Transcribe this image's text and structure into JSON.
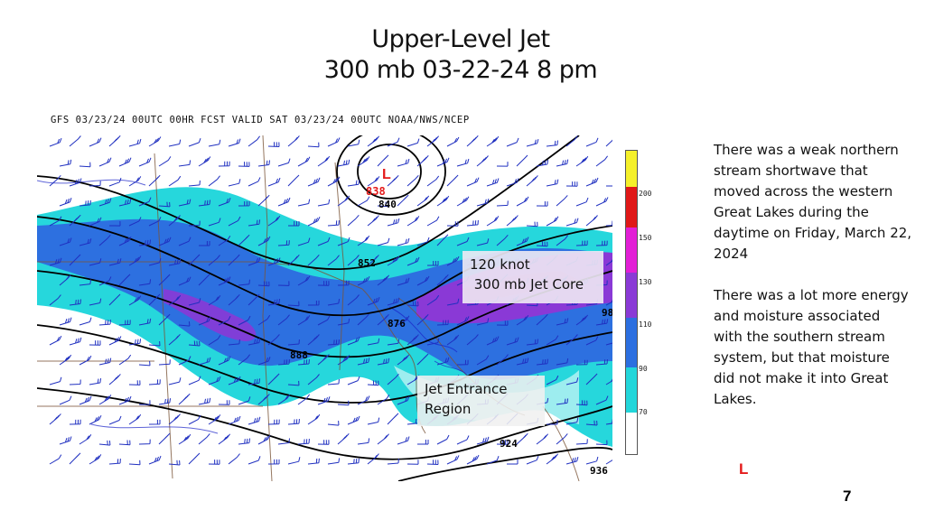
{
  "slide": {
    "title_line1": "Upper-Level  Jet",
    "title_line2": "300 mb 03-22-24  8 pm",
    "page_number": "7"
  },
  "map": {
    "header": "GFS 03/23/24 00UTC 00HR FCST VALID SAT 03/23/24 00UTC NOAA/NWS/NCEP",
    "low_label": "L",
    "low_value": "838",
    "contour_labels": [
      "840",
      "852",
      "876",
      "888",
      "924",
      "936",
      "98"
    ],
    "colorbar_ticks": [
      "200",
      "150",
      "130",
      "110",
      "90",
      "70"
    ],
    "colors": {
      "cb_yellow": "#f5f02a",
      "cb_red": "#e01818",
      "cb_magenta": "#e21fd6",
      "cb_purple": "#8a3ad6",
      "cb_blue": "#2c6fe0",
      "cb_cyan": "#22d6da",
      "cb_white": "#ffffff",
      "low_red": "#e41b1b"
    }
  },
  "annotations": {
    "jet_core_line1": "120 knot",
    "jet_core_line2": " 300 mb Jet Core",
    "entrance_line1": "Jet Entrance",
    "entrance_line2": "Region"
  },
  "side_text": {
    "paragraph1": "There was a weak northern stream shortwave that moved across the western Great Lakes during the daytime on Friday, March 22, 2024",
    "paragraph2": "There was a lot more energy and moisture associated with the southern stream system, but that moisture did not make it into Great Lakes."
  },
  "corner_low": "L"
}
